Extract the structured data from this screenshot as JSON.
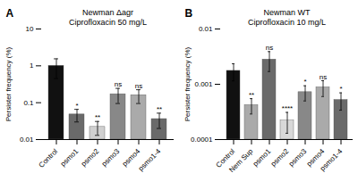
{
  "chart_data": [
    {
      "type": "bar",
      "title": "Newman Δagr",
      "subtitle": "Ciprofloxacin 50 mg/L",
      "annotations": [
        "A"
      ],
      "categories": [
        "Control",
        "psmo1",
        "psmo2",
        "psmo3",
        "psmo4",
        "psmo1-4"
      ],
      "values": [
        1.0,
        0.048,
        0.022,
        0.17,
        0.16,
        0.036
      ],
      "errors": [
        0.55,
        0.018,
        0.009,
        0.075,
        0.065,
        0.016
      ],
      "colors": [
        "#111111",
        "#6a6a6a",
        "#d0d0d0",
        "#888888",
        "#aaaaaa",
        "#6a6a6a"
      ],
      "significance": [
        null,
        "*",
        "**",
        "ns",
        "ns",
        "**"
      ],
      "ylabel": "Persister frequency (%)",
      "log": "y",
      "ylim": [
        0.01,
        10
      ],
      "yticks": [
        0.01,
        0.1,
        1,
        10
      ],
      "grid": false
    },
    {
      "type": "bar",
      "title": "Newman WT",
      "subtitle": "Ciprofloxacin 10 mg/L",
      "annotations": [
        "B"
      ],
      "categories": [
        "Control",
        "Nem Sup",
        "psmo1",
        "psmo2",
        "psmo3",
        "psmo4",
        "psmo1-4"
      ],
      "values": [
        0.00175,
        0.00042,
        0.0028,
        0.00022,
        0.00072,
        0.00088,
        0.00052
      ],
      "errors": [
        0.0006,
        0.00013,
        0.0011,
        9e-05,
        0.00022,
        0.00028,
        0.00018
      ],
      "colors": [
        "#111111",
        "#aaaaaa",
        "#6a6a6a",
        "#d8d8d8",
        "#888888",
        "#aaaaaa",
        "#6a6a6a"
      ],
      "significance": [
        null,
        "**",
        "ns",
        "****",
        "*",
        "ns",
        "*"
      ],
      "ylabel": "Persister frequency (%)",
      "log": "y",
      "ylim": [
        0.0001,
        0.01
      ],
      "yticks": [
        0.0001,
        0.001,
        0.01
      ],
      "grid": false
    }
  ]
}
